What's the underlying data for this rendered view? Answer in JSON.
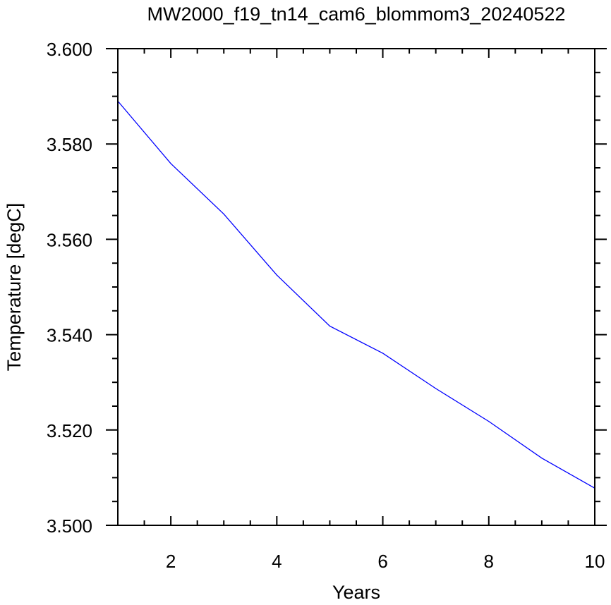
{
  "chart_data": {
    "type": "line",
    "title": "MW2000_f19_tn14_cam6_blommom3_20240522",
    "xlabel": "Years",
    "ylabel": "Temperature [degC]",
    "xlim": [
      1,
      10
    ],
    "ylim": [
      3.5,
      3.6
    ],
    "x_ticks": [
      "2",
      "4",
      "6",
      "8",
      "10"
    ],
    "y_ticks": [
      "3.500",
      "3.520",
      "3.540",
      "3.560",
      "3.580",
      "3.600"
    ],
    "grid": false,
    "legend": "none",
    "series": [
      {
        "color": "#0000ff",
        "x": [
          1,
          2,
          3,
          4,
          5,
          6,
          7,
          8,
          9,
          10
        ],
        "y": [
          3.589,
          3.5759,
          3.5653,
          3.5525,
          3.5418,
          3.5361,
          3.5287,
          3.5218,
          3.5141,
          3.5078
        ]
      }
    ]
  }
}
